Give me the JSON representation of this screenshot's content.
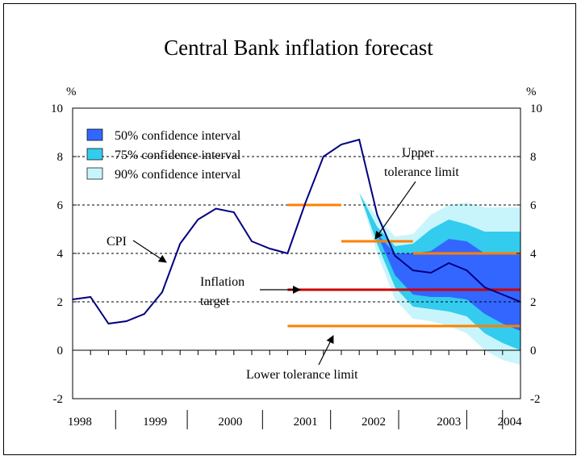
{
  "chart_data": {
    "type": "line",
    "title": "Central Bank inflation forecast",
    "y_unit_left": "%",
    "y_unit_right": "%",
    "ylim": [
      -2,
      10
    ],
    "yticks": [
      -2,
      0,
      2,
      4,
      6,
      8,
      10
    ],
    "ytick_labels": [
      "-2",
      "0",
      "2",
      "4",
      "6",
      "8",
      "10"
    ],
    "xlim": [
      1998,
      2004.25
    ],
    "x_labels": [
      {
        "label": "1998",
        "x": 1998.1
      },
      {
        "label": "1999",
        "x": 1999.15
      },
      {
        "label": "2000",
        "x": 2000.2
      },
      {
        "label": "2001",
        "x": 2001.25
      },
      {
        "label": "2002",
        "x": 2002.2
      },
      {
        "label": "2003",
        "x": 2003.25
      },
      {
        "label": "2004",
        "x": 2004.1
      }
    ],
    "x_separators": [
      1998.6,
      1999.6,
      2000.65,
      2001.6,
      2002.55,
      2003.5,
      2004.0
    ],
    "grid_y": [
      2,
      4,
      6,
      8
    ],
    "legend": {
      "placement": "top-left",
      "items": [
        {
          "label": "50% confidence interval",
          "color": "#3366ff"
        },
        {
          "label": "75% confidence interval",
          "color": "#33ccee"
        },
        {
          "label": "90% confidence interval",
          "color": "#c8f5fb"
        }
      ]
    },
    "series": [
      {
        "name": "CPI",
        "color": "#000080",
        "x": [
          1998.0,
          1998.25,
          1998.5,
          1998.75,
          1999.0,
          1999.25,
          1999.5,
          1999.75,
          2000.0,
          2000.25,
          2000.5,
          2000.75,
          2001.0,
          2001.25,
          2001.5,
          2001.75,
          2002.0,
          2002.25,
          2002.5,
          2002.75,
          2003.0,
          2003.25,
          2003.5,
          2003.75,
          2004.0,
          2004.25
        ],
        "y": [
          2.1,
          2.2,
          1.1,
          1.2,
          1.5,
          2.4,
          4.4,
          5.4,
          5.85,
          5.7,
          4.5,
          4.2,
          4.0,
          6.1,
          8.0,
          8.5,
          8.7,
          5.6,
          3.9,
          3.3,
          3.2,
          3.6,
          3.3,
          2.6,
          2.3,
          2.0
        ]
      }
    ],
    "fan": {
      "x": [
        2002.0,
        2002.25,
        2002.5,
        2002.75,
        2003.0,
        2003.25,
        2003.5,
        2003.75,
        2004.0,
        2004.25
      ],
      "ci90": {
        "upper": [
          6.5,
          5.5,
          4.7,
          4.8,
          5.6,
          6.0,
          6.1,
          5.9,
          5.9,
          5.9
        ],
        "lower": [
          6.5,
          4.0,
          2.1,
          1.3,
          1.2,
          1.0,
          0.7,
          0.0,
          -0.4,
          -0.6
        ]
      },
      "ci75": {
        "upper": [
          6.5,
          5.1,
          4.3,
          4.4,
          5.0,
          5.4,
          5.2,
          4.9,
          4.9,
          4.9
        ],
        "lower": [
          6.5,
          4.4,
          2.6,
          1.8,
          1.7,
          1.6,
          1.4,
          0.7,
          0.3,
          0.0
        ]
      },
      "ci50": {
        "upper": [
          6.5,
          4.8,
          4.0,
          4.0,
          4.1,
          4.6,
          4.5,
          4.0,
          4.0,
          4.0
        ],
        "lower": [
          6.5,
          4.8,
          3.1,
          2.3,
          2.2,
          2.2,
          2.1,
          1.5,
          1.1,
          0.8
        ]
      }
    },
    "reference_lines": [
      {
        "name": "lower-tolerance-limit",
        "x": [
          2001.0,
          2004.25
        ],
        "y": 1.0,
        "color": "#ff8000"
      },
      {
        "name": "inflation-target",
        "x": [
          2001.0,
          2004.25
        ],
        "y": 2.5,
        "color": "#cc0000"
      },
      {
        "name": "upper-tolerance-limit-2001",
        "x": [
          2001.0,
          2001.75
        ],
        "y": 6.0,
        "color": "#ff8000"
      },
      {
        "name": "upper-tolerance-limit-2002",
        "x": [
          2001.75,
          2002.75
        ],
        "y": 4.5,
        "color": "#ff8000"
      },
      {
        "name": "upper-tolerance-limit-2003",
        "x": [
          2002.75,
          2004.25
        ],
        "y": 4.0,
        "color": "#ff8000"
      }
    ],
    "annotations": [
      {
        "name": "cpi",
        "lines": [
          "CPI"
        ]
      },
      {
        "name": "inflation-target",
        "lines": [
          "Inflation",
          "target"
        ]
      },
      {
        "name": "upper-tolerance-limit",
        "lines": [
          "Upper",
          "tolerance limit"
        ]
      },
      {
        "name": "lower-tolerance-limit",
        "lines": [
          "Lower tolerance limit"
        ]
      }
    ]
  }
}
